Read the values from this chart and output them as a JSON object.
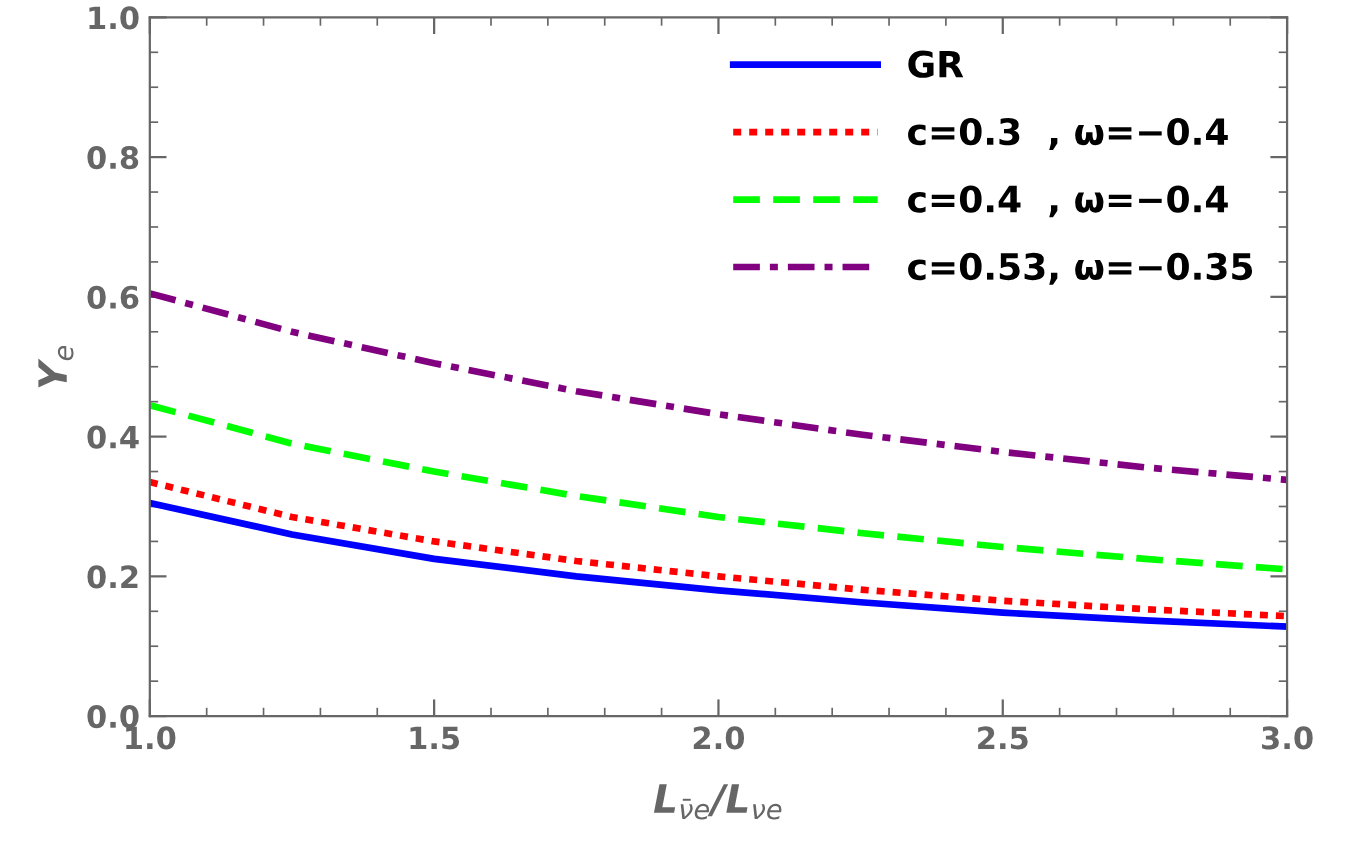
{
  "chart_data": {
    "type": "line",
    "xlabel": "L$_{ν̄e}$/L$_{νe}$",
    "ylabel": "Y$_{e}$",
    "x": [
      1.0,
      1.25,
      1.5,
      1.75,
      2.0,
      2.25,
      2.5,
      2.75,
      3.0
    ],
    "series": [
      {
        "name": "GR",
        "color": "#0000ff",
        "line_style": "solid",
        "values": [
          0.305,
          0.26,
          0.225,
          0.2,
          0.18,
          0.163,
          0.148,
          0.137,
          0.128
        ]
      },
      {
        "name": "c=0.3  , ω=−0.4",
        "color": "#ff0000",
        "line_style": "dotted",
        "values": [
          0.335,
          0.285,
          0.25,
          0.222,
          0.2,
          0.181,
          0.165,
          0.153,
          0.143
        ]
      },
      {
        "name": "c=0.4  , ω=−0.4",
        "color": "#00ff00",
        "line_style": "dashed",
        "values": [
          0.445,
          0.39,
          0.35,
          0.315,
          0.285,
          0.262,
          0.242,
          0.225,
          0.21
        ]
      },
      {
        "name": "c=0.53, ω=−0.35",
        "color": "#800080",
        "line_style": "dashdot",
        "values": [
          0.605,
          0.55,
          0.505,
          0.465,
          0.432,
          0.403,
          0.378,
          0.356,
          0.338
        ]
      }
    ],
    "xlim": [
      1.0,
      3.0
    ],
    "xticks": [
      {
        "value": 1.0,
        "label": "1.0"
      },
      1.5,
      {
        "value": 2.0,
        "label": "2.0"
      },
      2.5,
      {
        "value": 3.0,
        "label": "3.0"
      }
    ],
    "ylim": [
      0.0,
      1.0
    ],
    "yticks": [
      {
        "value": 0.0,
        "label": "0.0"
      },
      0.2,
      0.4,
      0.6,
      0.8,
      {
        "value": 1.0,
        "label": "1.0"
      }
    ],
    "grid": false,
    "legend": "top right",
    "marker": "none"
  }
}
